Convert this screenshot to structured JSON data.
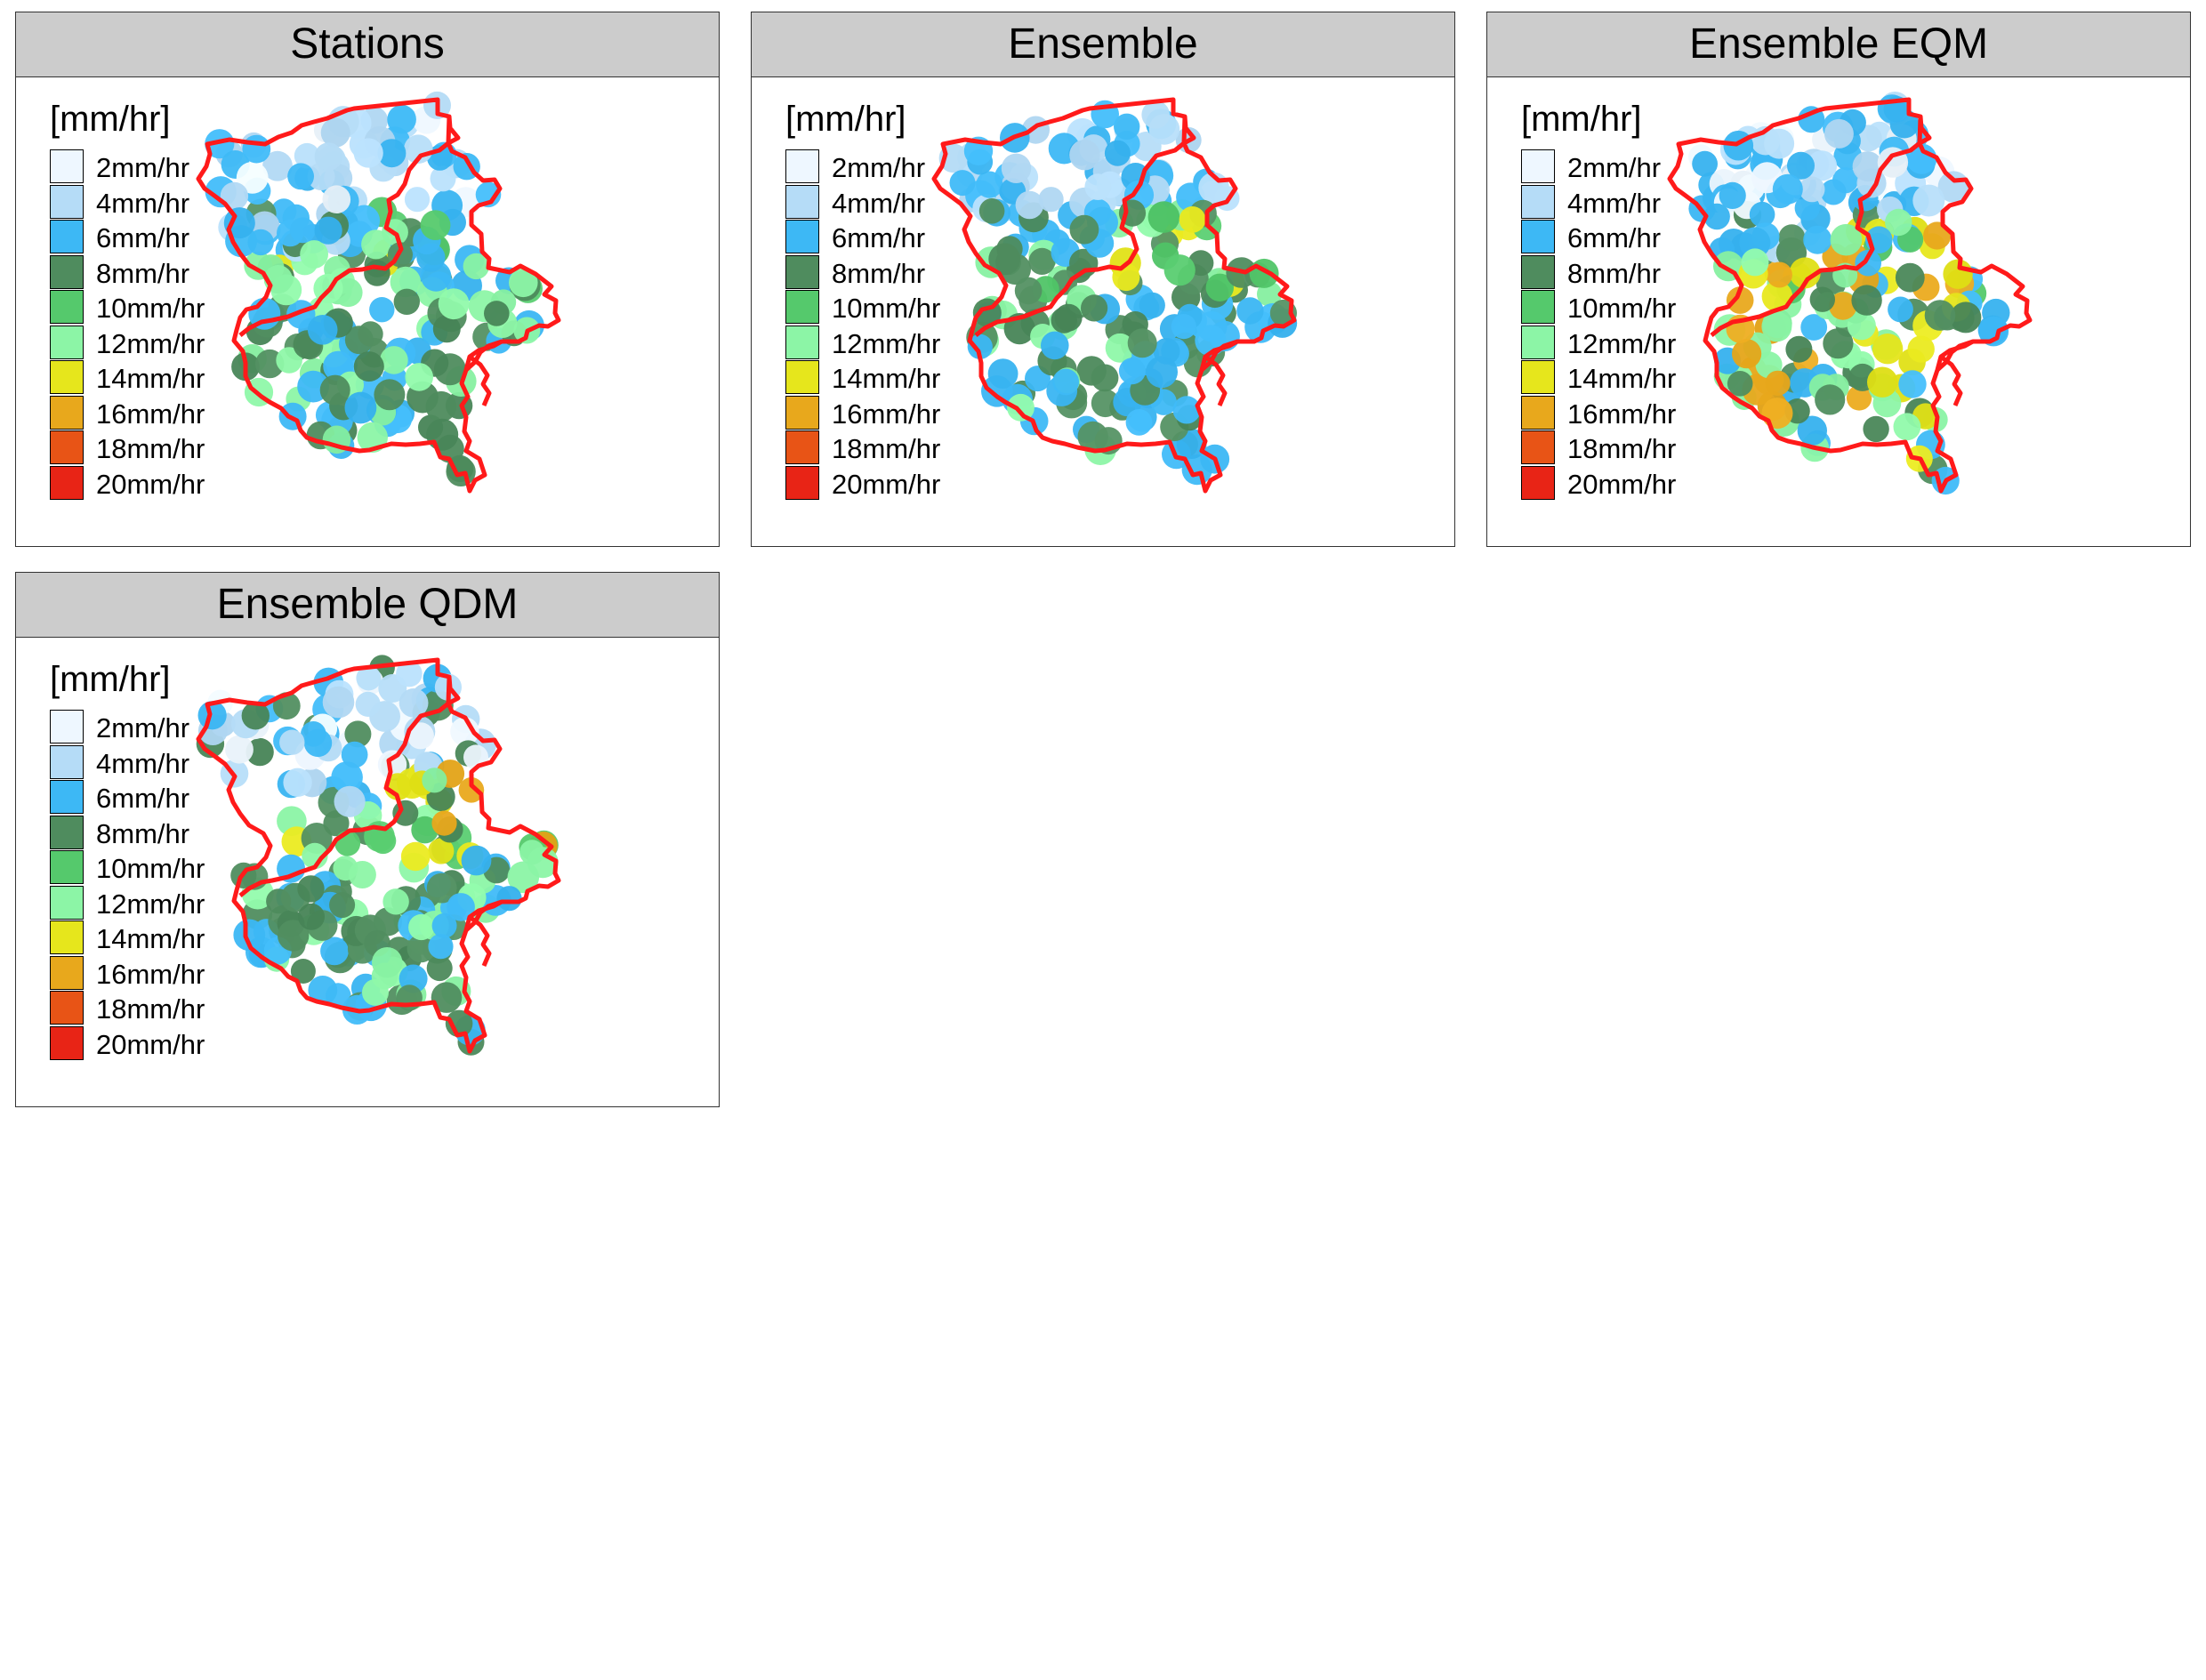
{
  "legend": {
    "unit": "[mm/hr]",
    "classes": [
      {
        "label": "2mm/hr",
        "color": "#eef7ff"
      },
      {
        "label": "4mm/hr",
        "color": "#b5dcf7"
      },
      {
        "label": "6mm/hr",
        "color": "#3db8f5"
      },
      {
        "label": "8mm/hr",
        "color": "#4f8c5e"
      },
      {
        "label": "10mm/hr",
        "color": "#55c96c"
      },
      {
        "label": "12mm/hr",
        "color": "#8cf5a6"
      },
      {
        "label": "14mm/hr",
        "color": "#e6e61c"
      },
      {
        "label": "16mm/hr",
        "color": "#e8a81c"
      },
      {
        "label": "18mm/hr",
        "color": "#e85416"
      },
      {
        "label": "20mm/hr",
        "color": "#e82416"
      }
    ]
  },
  "boundary_color": "#ff1a1a",
  "panels": [
    {
      "title": "Stations",
      "pattern": "stations"
    },
    {
      "title": "Ensemble",
      "pattern": "ensemble"
    },
    {
      "title": "Ensemble EQM",
      "pattern": "eqm"
    },
    {
      "title": "Ensemble QDM",
      "pattern": "qdm"
    }
  ]
}
